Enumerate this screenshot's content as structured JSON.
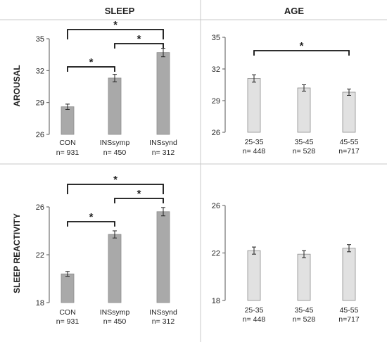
{
  "headers": {
    "left": "SLEEP",
    "right": "AGE"
  },
  "row_labels": {
    "top": "AROUSAL",
    "bottom": "SLEEP REACTIVITY"
  },
  "colors": {
    "sleep_bar": "#a9a9a9",
    "age_bar": "#e1e1e1",
    "bar_edge": "#8c8c8c",
    "divider": "#c8c8c8"
  },
  "chart_data": [
    {
      "type": "bar",
      "panel": "top-left",
      "ylabel": "AROUSAL",
      "ylim": [
        26,
        35
      ],
      "yticks": [
        26,
        29,
        32,
        35
      ],
      "categories": [
        "CON",
        "INSsymp",
        "INSsynd"
      ],
      "counts": [
        "n= 931",
        "n= 450",
        "n= 312"
      ],
      "values": [
        28.6,
        31.3,
        33.7
      ],
      "errors": [
        0.25,
        0.35,
        0.4
      ],
      "significance": [
        {
          "from": 0,
          "to": 1,
          "label": "*"
        },
        {
          "from": 1,
          "to": 2,
          "label": "*"
        },
        {
          "from": 0,
          "to": 2,
          "label": "*"
        }
      ]
    },
    {
      "type": "bar",
      "panel": "top-right",
      "ylim": [
        26,
        35
      ],
      "yticks": [
        26,
        29,
        32,
        35
      ],
      "categories": [
        "25-35",
        "35-45",
        "45-55"
      ],
      "counts": [
        "n= 448",
        "n= 528",
        "n=717"
      ],
      "values": [
        31.1,
        30.2,
        29.8
      ],
      "errors": [
        0.35,
        0.3,
        0.3
      ],
      "significance": [
        {
          "from": 0,
          "to": 2,
          "label": "*"
        }
      ]
    },
    {
      "type": "bar",
      "panel": "bottom-left",
      "ylabel": "SLEEP REACTIVITY",
      "ylim": [
        18,
        26
      ],
      "yticks": [
        18,
        22,
        26
      ],
      "categories": [
        "CON",
        "INSsymp",
        "INSsynd"
      ],
      "counts": [
        "n= 931",
        "n= 450",
        "n= 312"
      ],
      "values": [
        20.4,
        23.7,
        25.6
      ],
      "errors": [
        0.2,
        0.3,
        0.35
      ],
      "significance": [
        {
          "from": 0,
          "to": 1,
          "label": "*"
        },
        {
          "from": 1,
          "to": 2,
          "label": "*"
        },
        {
          "from": 0,
          "to": 2,
          "label": "*"
        }
      ]
    },
    {
      "type": "bar",
      "panel": "bottom-right",
      "ylim": [
        18,
        26
      ],
      "yticks": [
        18,
        22,
        26
      ],
      "categories": [
        "25-35",
        "35-45",
        "45-55"
      ],
      "counts": [
        "n= 448",
        "n= 528",
        "n=717"
      ],
      "values": [
        22.2,
        21.9,
        22.4
      ],
      "errors": [
        0.3,
        0.3,
        0.3
      ],
      "significance": []
    }
  ]
}
